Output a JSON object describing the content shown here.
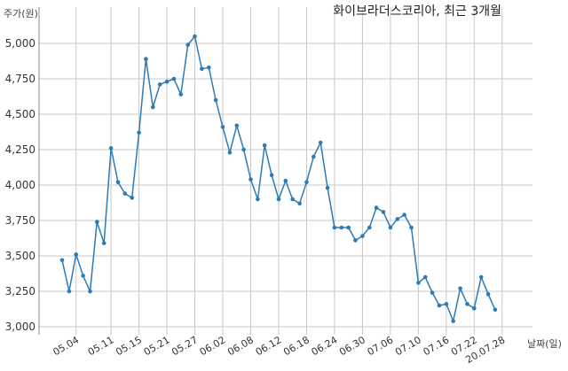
{
  "chart_data": {
    "type": "line",
    "title": "화이브라더스코리아, 최근 3개월",
    "ylabel": "주가(원)",
    "xlabel": "날짜(일)",
    "ylim": [
      2950,
      5150
    ],
    "yticks": [
      3000,
      3250,
      3500,
      3750,
      4000,
      4250,
      4500,
      4750,
      5000
    ],
    "ytick_labels": [
      "3,000",
      "3,250",
      "3,500",
      "3,750",
      "4,000",
      "4,250",
      "4,500",
      "4,750",
      "5,000"
    ],
    "xtick_labels": [
      "05.04",
      "05.11",
      "05.15",
      "05.21",
      "05.27",
      "06.02",
      "06.08",
      "06.12",
      "06.18",
      "06.24",
      "06.30",
      "07.06",
      "07.10",
      "07.16",
      "07.22",
      "20.07.28"
    ],
    "xtick_index": [
      2,
      7,
      11,
      15,
      19,
      23,
      27,
      31,
      35,
      39,
      43,
      47,
      51,
      55,
      59,
      63
    ],
    "grid": true,
    "color": "#2e7bb4",
    "values": [
      3470,
      3250,
      3510,
      3360,
      3250,
      3740,
      3590,
      4260,
      4020,
      3940,
      3910,
      4370,
      4890,
      4550,
      4710,
      4730,
      4750,
      4640,
      4990,
      5050,
      4820,
      4830,
      4600,
      4410,
      4230,
      4420,
      4250,
      4040,
      3900,
      4280,
      4070,
      3900,
      4030,
      3900,
      3870,
      4020,
      4200,
      4300,
      3980,
      3700,
      3700,
      3700,
      3610,
      3640,
      3700,
      3840,
      3810,
      3700,
      3760,
      3790,
      3700,
      3310,
      3350,
      3240,
      3150,
      3160,
      3040,
      3270,
      3160,
      3130,
      3350,
      3230,
      3120
    ]
  }
}
